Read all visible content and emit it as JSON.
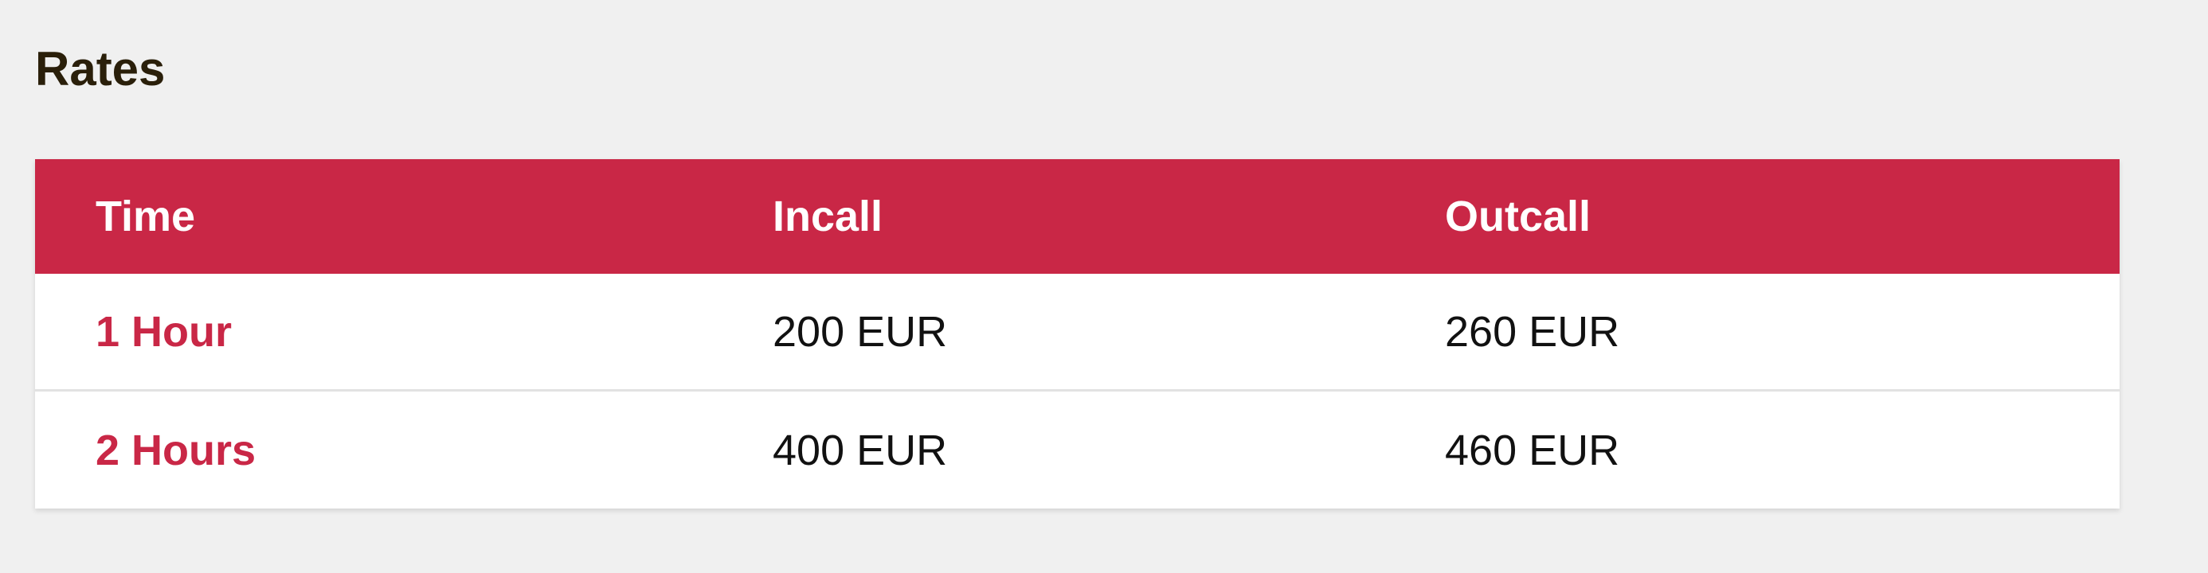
{
  "title": "Rates",
  "colors": {
    "accent": "#c92746",
    "title": "#2a1f0a",
    "background": "#f0f0f0"
  },
  "table": {
    "headers": [
      "Time",
      "Incall",
      "Outcall"
    ],
    "rows": [
      {
        "time": "1 Hour",
        "incall": "200 EUR",
        "outcall": "260 EUR"
      },
      {
        "time": "2 Hours",
        "incall": "400 EUR",
        "outcall": "460 EUR"
      }
    ]
  }
}
